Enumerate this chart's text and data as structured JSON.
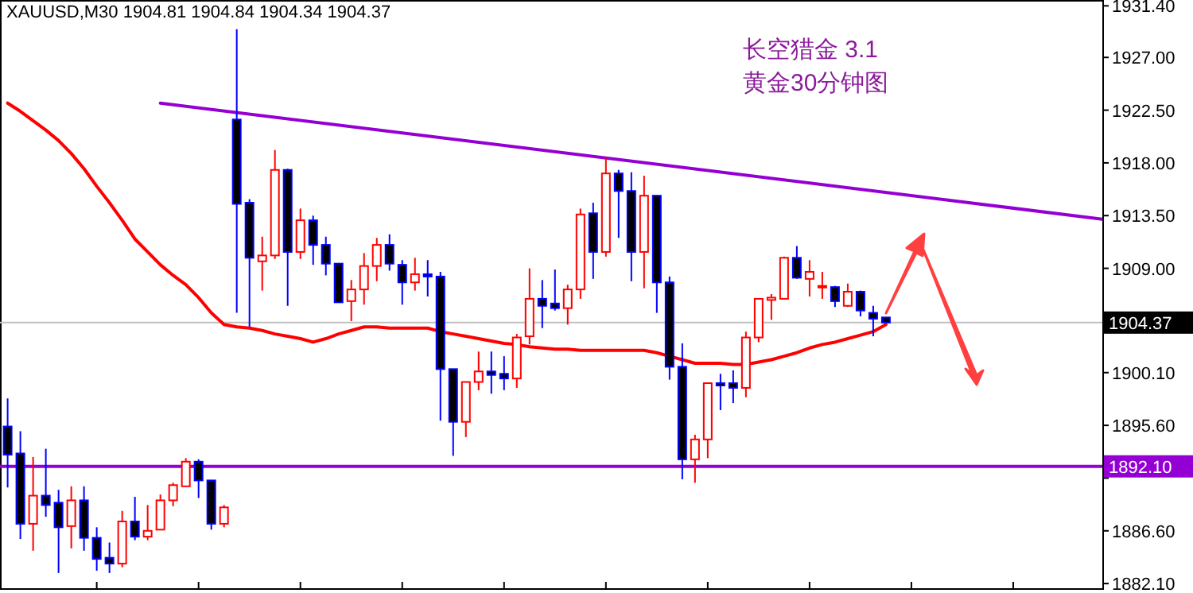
{
  "chart_data": {
    "type": "candlestick",
    "title": "XAUUSD,M30  1904.81 1904.84 1904.34 1904.37",
    "annotations": [
      "长空猎金  3.1",
      "黄金30分钟图"
    ],
    "categories": [
      null,
      null,
      null,
      null,
      null,
      null,
      null,
      null,
      null,
      null,
      null,
      null,
      null,
      null,
      null,
      null,
      null,
      null,
      null,
      null,
      null,
      null,
      null,
      null,
      null,
      null,
      null,
      null,
      null,
      null,
      null,
      null,
      null,
      null,
      null,
      null,
      null,
      null,
      null,
      null,
      null,
      null,
      null,
      null,
      null,
      null,
      null,
      null,
      null,
      null,
      null,
      null,
      null,
      null,
      null,
      null,
      null,
      null,
      null,
      null,
      null,
      null,
      null,
      null,
      null,
      null,
      null,
      null,
      null,
      null,
      null,
      null,
      null,
      null,
      null,
      null,
      null,
      null,
      null,
      null,
      null,
      null,
      null,
      null,
      null,
      null,
      null
    ],
    "ohlc": [
      [
        1895.5,
        1897.9,
        1890.3,
        1893.1
      ],
      [
        1893.2,
        1895.1,
        1885.9,
        1887.2
      ],
      [
        1887.2,
        1892.9,
        1884.9,
        1889.6
      ],
      [
        1889.6,
        1893.6,
        1887.8,
        1888.8
      ],
      [
        1889.0,
        1890.1,
        1883.0,
        1886.9
      ],
      [
        1887.0,
        1890.4,
        1885.1,
        1889.2
      ],
      [
        1889.2,
        1890.4,
        1884.9,
        1886.0
      ],
      [
        1886.0,
        1886.9,
        1883.2,
        1884.2
      ],
      [
        1884.3,
        1885.6,
        1883.0,
        1883.8
      ],
      [
        1883.8,
        1888.3,
        1883.5,
        1887.4
      ],
      [
        1887.4,
        1889.5,
        1885.8,
        1886.1
      ],
      [
        1886.1,
        1888.8,
        1885.8,
        1886.6
      ],
      [
        1886.7,
        1889.7,
        1886.7,
        1889.2
      ],
      [
        1889.2,
        1890.7,
        1888.7,
        1890.5
      ],
      [
        1890.4,
        1892.8,
        1890.4,
        1892.5
      ],
      [
        1892.5,
        1892.7,
        1889.4,
        1890.9
      ],
      [
        1890.9,
        1890.9,
        1886.7,
        1887.2
      ],
      [
        1887.2,
        1888.8,
        1886.9,
        1888.6
      ],
      [
        1921.7,
        1929.4,
        1905.2,
        1914.5
      ],
      [
        1914.6,
        1914.9,
        1904.0,
        1909.9
      ],
      [
        1909.6,
        1911.7,
        1907.1,
        1910.1
      ],
      [
        1910.1,
        1919.1,
        1909.8,
        1917.4
      ],
      [
        1917.4,
        1917.5,
        1905.8,
        1910.4
      ],
      [
        1910.4,
        1914.1,
        1909.8,
        1913.1
      ],
      [
        1913.1,
        1913.5,
        1909.3,
        1911.0
      ],
      [
        1911.0,
        1911.7,
        1908.4,
        1909.4
      ],
      [
        1909.4,
        1909.4,
        1906.1,
        1906.1
      ],
      [
        1906.2,
        1908.0,
        1904.5,
        1907.2
      ],
      [
        1907.2,
        1910.3,
        1905.9,
        1909.2
      ],
      [
        1909.2,
        1911.6,
        1907.9,
        1911.0
      ],
      [
        1911.0,
        1911.9,
        1908.8,
        1909.4
      ],
      [
        1909.3,
        1909.7,
        1905.9,
        1907.8
      ],
      [
        1907.8,
        1909.9,
        1907.1,
        1908.5
      ],
      [
        1908.5,
        1909.7,
        1906.6,
        1908.3
      ],
      [
        1908.3,
        1908.7,
        1896.0,
        1900.4
      ],
      [
        1900.4,
        1900.4,
        1893.0,
        1895.9
      ],
      [
        1895.9,
        1899.3,
        1894.6,
        1899.3
      ],
      [
        1899.3,
        1901.9,
        1898.6,
        1900.2
      ],
      [
        1900.2,
        1901.9,
        1898.3,
        1899.9
      ],
      [
        1900.0,
        1901.5,
        1898.6,
        1899.6
      ],
      [
        1899.6,
        1903.4,
        1898.8,
        1903.1
      ],
      [
        1903.2,
        1909.0,
        1902.5,
        1906.4
      ],
      [
        1906.4,
        1908.0,
        1903.9,
        1905.8
      ],
      [
        1906.0,
        1908.9,
        1905.4,
        1905.6
      ],
      [
        1905.6,
        1907.6,
        1904.2,
        1907.2
      ],
      [
        1907.2,
        1914.1,
        1906.4,
        1913.6
      ],
      [
        1913.7,
        1914.6,
        1908.1,
        1910.4
      ],
      [
        1910.4,
        1918.4,
        1910.0,
        1917.1
      ],
      [
        1917.1,
        1917.4,
        1911.6,
        1915.6
      ],
      [
        1915.6,
        1917.2,
        1907.9,
        1910.4
      ],
      [
        1910.4,
        1916.9,
        1907.3,
        1915.2
      ],
      [
        1915.2,
        1915.2,
        1905.2,
        1907.8
      ],
      [
        1907.8,
        1908.3,
        1899.5,
        1900.6
      ],
      [
        1900.6,
        1902.6,
        1891.0,
        1892.7
      ],
      [
        1892.7,
        1894.8,
        1890.7,
        1894.4
      ],
      [
        1894.4,
        1899.2,
        1892.8,
        1899.2
      ],
      [
        1899.2,
        1900.0,
        1896.9,
        1899.0
      ],
      [
        1899.2,
        1900.3,
        1897.5,
        1898.8
      ],
      [
        1898.8,
        1903.6,
        1898.0,
        1903.1
      ],
      [
        1903.1,
        1906.4,
        1902.7,
        1906.4
      ],
      [
        1906.3,
        1906.8,
        1904.6,
        1906.5
      ],
      [
        1906.4,
        1910.0,
        1906.4,
        1909.9
      ],
      [
        1909.9,
        1910.9,
        1908.1,
        1908.2
      ],
      [
        1908.1,
        1909.7,
        1906.6,
        1908.7
      ],
      [
        1907.4,
        1908.7,
        1906.4,
        1907.5
      ],
      [
        1907.4,
        1907.5,
        1905.7,
        1906.2
      ],
      [
        1905.8,
        1907.7,
        1905.7,
        1907.0
      ],
      [
        1907.0,
        1907.1,
        1904.9,
        1905.4
      ],
      [
        1905.2,
        1905.8,
        1903.2,
        1904.7
      ],
      [
        1904.81,
        1904.84,
        1904.34,
        1904.37
      ],
      null,
      null,
      null,
      null,
      null,
      null,
      null,
      null,
      null,
      null,
      null,
      null,
      null,
      null,
      null,
      null,
      null
    ],
    "series": [
      {
        "type": "line",
        "color": "#ff0000",
        "values": [
          1923.1,
          1922.4,
          1921.6,
          1920.8,
          1919.9,
          1918.8,
          1917.5,
          1916.0,
          1914.6,
          1913.1,
          1911.5,
          1910.4,
          1909.3,
          1908.4,
          1907.6,
          1906.5,
          1905.2,
          1904.2,
          1904.0,
          1903.9,
          1903.7,
          1903.4,
          1903.2,
          1903.0,
          1902.7,
          1903.0,
          1903.4,
          1903.7,
          1904.0,
          1904.0,
          1903.9,
          1903.9,
          1903.9,
          1903.9,
          1903.6,
          1903.4,
          1903.2,
          1903.0,
          1902.8,
          1902.6,
          1902.5,
          1902.3,
          1902.2,
          1902.1,
          1902.1,
          1902.0,
          1902.0,
          1902.0,
          1902.0,
          1902.0,
          1902.0,
          1901.8,
          1901.5,
          1901.2,
          1900.9,
          1900.9,
          1900.9,
          1900.8,
          1900.8,
          1901.0,
          1901.2,
          1901.5,
          1901.8,
          1902.2,
          1902.5,
          1902.7,
          1903.0,
          1903.3,
          1903.6,
          1904.2,
          null,
          null,
          null,
          null,
          null,
          null,
          null,
          null,
          null,
          null,
          null,
          null,
          null,
          null,
          null,
          null,
          null
        ]
      },
      {
        "type": "line",
        "color": "#9400d3",
        "values": [
          null,
          null,
          null,
          null,
          null,
          null,
          null,
          null,
          null,
          null,
          null,
          null,
          1923.1,
          null,
          null,
          null,
          null,
          null,
          null,
          null,
          null,
          null,
          null,
          null,
          null,
          null,
          null,
          null,
          null,
          null,
          null,
          null,
          null,
          null,
          null,
          null,
          null,
          null,
          null,
          null,
          null,
          null,
          null,
          null,
          null,
          null,
          null,
          null,
          null,
          null,
          null,
          null,
          null,
          null,
          null,
          null,
          null,
          null,
          null,
          null,
          null,
          null,
          null,
          null,
          null,
          null,
          null,
          null,
          null,
          null,
          null,
          null,
          null,
          null,
          null,
          null,
          null,
          null,
          null,
          null,
          null,
          null,
          null,
          null,
          null,
          null,
          1913.2
        ]
      }
    ],
    "ref_lines": [
      {
        "axis": "y",
        "value": 1892.1,
        "label": "1892.10",
        "color": "#9400d3"
      },
      {
        "axis": "y",
        "value": 1904.37,
        "label": "1904.37",
        "color": "#c0c0c0"
      }
    ],
    "ylim": [
      1881.7,
      1931.9
    ],
    "yticks": [
      {
        "value": 1931.4,
        "label": "1931.40"
      },
      {
        "value": 1927.0,
        "label": "1927.00"
      },
      {
        "value": 1922.5,
        "label": "1922.50"
      },
      {
        "value": 1918.0,
        "label": "1918.00"
      },
      {
        "value": 1913.5,
        "label": "1913.50"
      },
      {
        "value": 1909.0,
        "label": "1909.00"
      },
      {
        "value": 1900.1,
        "label": "1900.10"
      },
      {
        "value": 1895.6,
        "label": "1895.60"
      },
      {
        "value": 1891.1,
        "label": null
      },
      {
        "value": 1886.6,
        "label": "1886.60"
      },
      {
        "value": 1882.1,
        "label": "1882.10"
      }
    ],
    "tick_labels": "y",
    "grid": false
  }
}
